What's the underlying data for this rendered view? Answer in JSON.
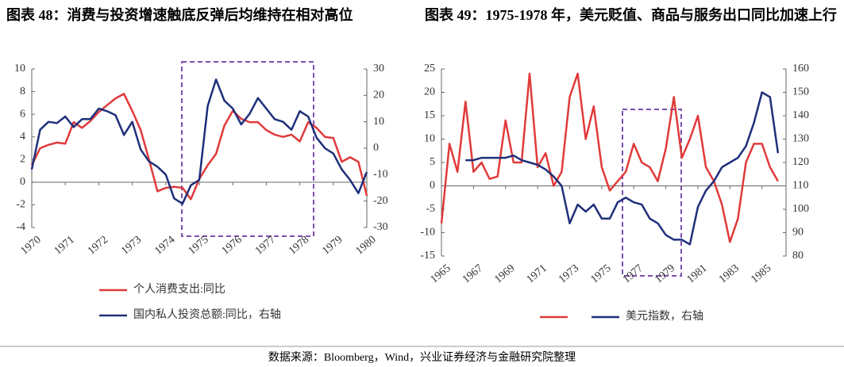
{
  "chart_data": [
    {
      "type": "line",
      "title": "图表 48：消费与投资增速触底反弹后均维持在相对高位",
      "x": [
        1970,
        1970.25,
        1970.5,
        1970.75,
        1971,
        1971.25,
        1971.5,
        1971.75,
        1972,
        1972.25,
        1972.5,
        1972.75,
        1973,
        1973.25,
        1973.5,
        1973.75,
        1974,
        1974.25,
        1974.5,
        1974.75,
        1975,
        1975.25,
        1975.5,
        1975.75,
        1976,
        1976.25,
        1976.5,
        1976.75,
        1977,
        1977.25,
        1977.5,
        1977.75,
        1978,
        1978.25,
        1978.5,
        1978.75,
        1979,
        1979.25,
        1979.5,
        1979.75,
        1980
      ],
      "xlim": [
        1970,
        1980
      ],
      "xticks": [
        1970,
        1971,
        1972,
        1973,
        1974,
        1975,
        1976,
        1977,
        1978,
        1979,
        1980
      ],
      "ylim": [
        -4,
        10
      ],
      "yticks": [
        -4,
        -2,
        0,
        2,
        4,
        6,
        8,
        10
      ],
      "y2lim": [
        -30,
        30
      ],
      "y2ticks": [
        -30,
        -20,
        -10,
        0,
        10,
        20,
        30
      ],
      "series": [
        {
          "name": "个人消费支出:同比",
          "color": "#e03a3a",
          "values": [
            1.5,
            3.0,
            3.3,
            3.5,
            3.4,
            5.3,
            4.8,
            5.4,
            6.2,
            6.8,
            7.4,
            7.8,
            6.3,
            4.6,
            2.0,
            -0.8,
            -0.5,
            -0.4,
            -0.5,
            -1.5,
            0.3,
            1.5,
            2.5,
            5.0,
            6.3,
            5.6,
            5.3,
            5.3,
            4.6,
            4.2,
            4.0,
            4.2,
            3.6,
            5.3,
            4.8,
            4.0,
            3.9,
            1.8,
            2.2,
            1.8,
            -1.2
          ]
        },
        {
          "name": "国内私人投资总额:同比，右轴",
          "color": "#1f2f7a",
          "axis": "y2",
          "values": [
            -8,
            7,
            10,
            9.5,
            12,
            8,
            11,
            11,
            15,
            14,
            12.5,
            5,
            10,
            -0.5,
            -5,
            -7,
            -10,
            -19,
            -21,
            -14,
            -12,
            16,
            26,
            18,
            15,
            9,
            13,
            19,
            15,
            11,
            10,
            7,
            14,
            12,
            4,
            0,
            -2,
            -8,
            -12,
            -17,
            -9
          ]
        }
      ]
    },
    {
      "type": "line",
      "title": "图表 49：1975-1978 年，美元贬值、商品与服务出口同比加速上行",
      "x": [
        1965,
        1965.5,
        1966,
        1966.5,
        1967,
        1967.5,
        1968,
        1968.5,
        1969,
        1969.5,
        1970,
        1970.5,
        1971,
        1971.5,
        1972,
        1972.5,
        1973,
        1973.5,
        1974,
        1974.5,
        1975,
        1975.5,
        1976,
        1976.5,
        1977,
        1977.5,
        1978,
        1978.5,
        1979,
        1979.5,
        1980,
        1980.5,
        1981,
        1981.5,
        1982,
        1982.5,
        1983,
        1983.5,
        1984,
        1984.5,
        1985,
        1985.5,
        1986
      ],
      "xlim": [
        1965,
        1986.5
      ],
      "xticks": [
        1965,
        1967,
        1969,
        1971,
        1973,
        1975,
        1977,
        1979,
        1981,
        1983,
        1985
      ],
      "ylim": [
        -15,
        25
      ],
      "yticks": [
        -15,
        -10,
        -5,
        0,
        5,
        10,
        15,
        20,
        25
      ],
      "y2lim": [
        80,
        160
      ],
      "y2ticks": [
        80,
        90,
        100,
        110,
        120,
        130,
        140,
        150,
        160
      ],
      "series": [
        {
          "color": "#e03a3a",
          "values": [
            -8,
            9,
            3,
            18,
            3,
            5,
            1.5,
            2,
            14,
            5,
            5,
            24,
            4,
            7,
            0,
            3,
            19,
            24,
            10,
            17,
            4,
            -1,
            1,
            3,
            9,
            5,
            4,
            1,
            8,
            19,
            6,
            10,
            15,
            4,
            1,
            -4,
            -12,
            -7,
            5,
            9,
            9,
            4,
            1
          ]
        },
        {
          "name": "美元指数，右轴",
          "color": "#1f2f7a",
          "axis": "y2",
          "values": [
            null,
            null,
            null,
            121,
            121,
            122,
            122,
            122,
            122,
            123,
            121,
            120,
            119,
            117,
            114,
            110,
            94,
            102,
            99,
            102,
            96,
            96,
            103,
            105,
            103,
            102,
            96,
            94,
            89,
            87,
            87,
            85,
            101,
            108,
            112,
            118,
            120,
            122,
            127,
            137,
            150,
            148,
            124
          ]
        }
      ]
    }
  ],
  "source": "数据来源：Bloomberg，Wind，兴业证券经济与金融研究院整理"
}
